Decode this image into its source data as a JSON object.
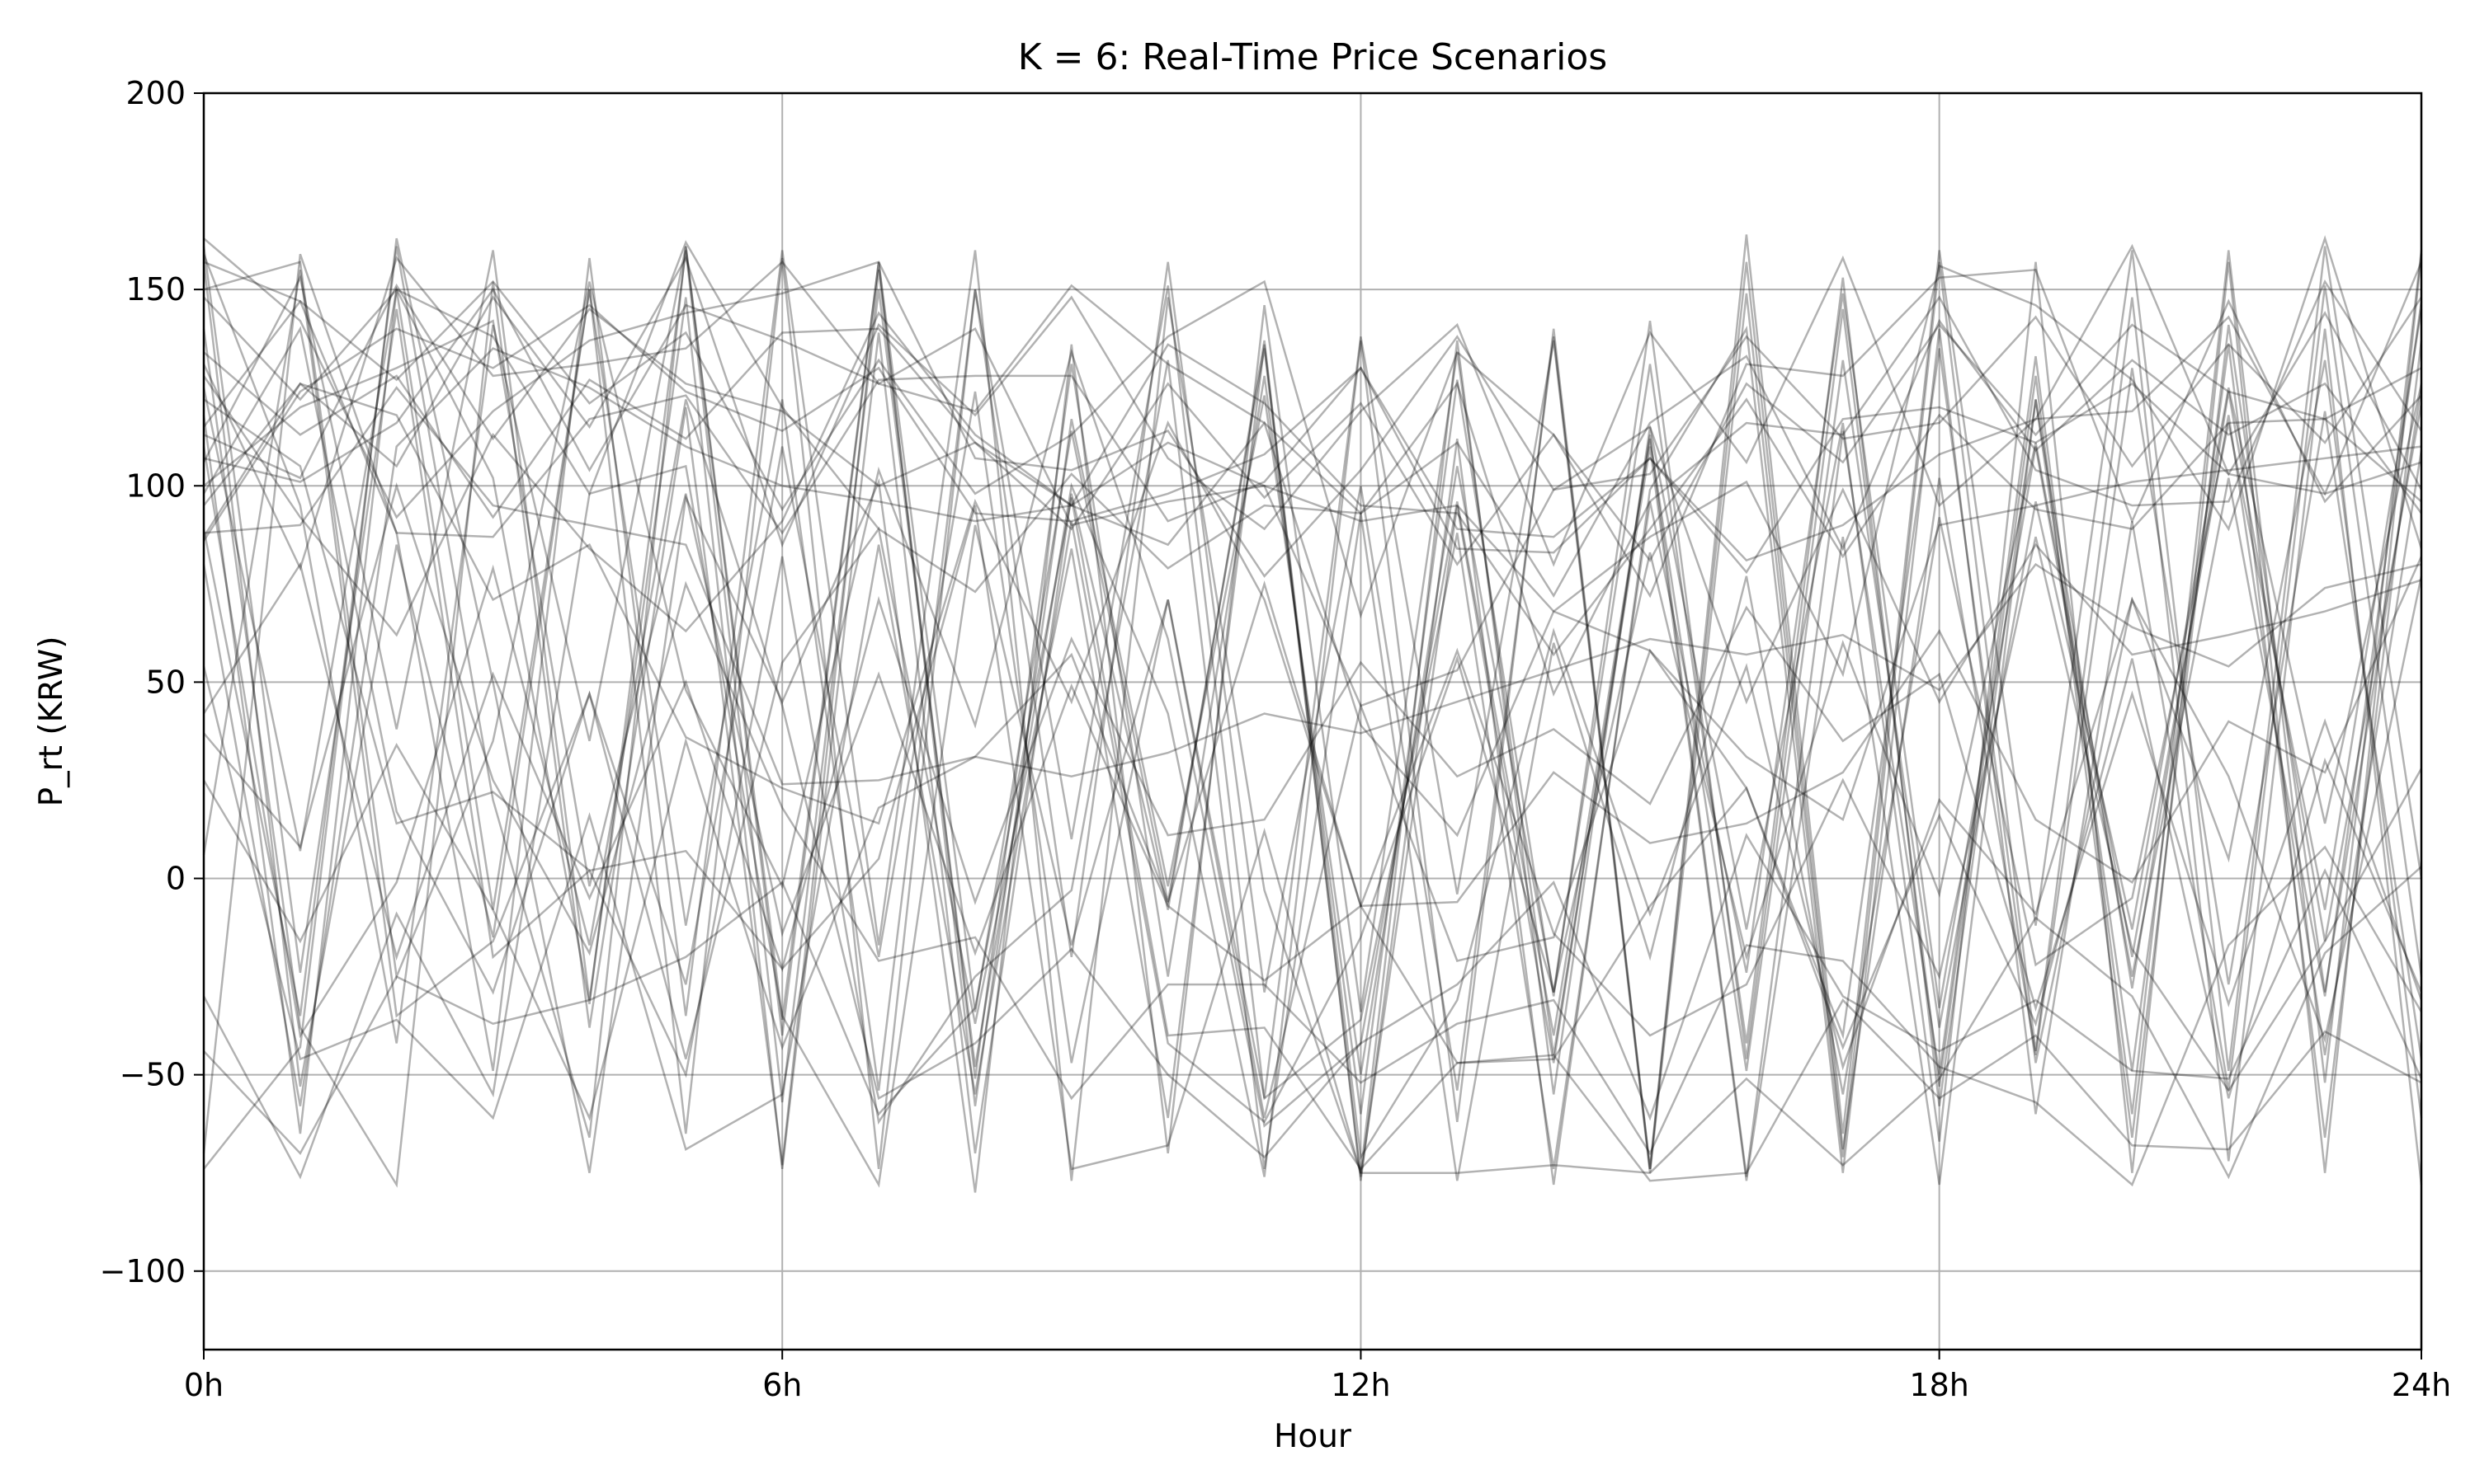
{
  "chart_data": {
    "type": "line",
    "title": "K = 6: Real-Time Price Scenarios",
    "xlabel": "Hour",
    "ylabel": "P_rt (KRW)",
    "xlim": [
      0,
      23
    ],
    "ylim": [
      -120,
      200
    ],
    "xticks": [
      0,
      6,
      12,
      18,
      23
    ],
    "xtick_labels": [
      "0h",
      "6h",
      "12h",
      "18h",
      "24h"
    ],
    "yticks": [
      -100,
      -50,
      0,
      50,
      100,
      150,
      200
    ],
    "ytick_labels": [
      "−100",
      "−50",
      "0",
      "50",
      "100",
      "150",
      "200"
    ],
    "grid": true,
    "legend": "none",
    "line_color": "#000000",
    "line_opacity": 0.3,
    "x": [
      0,
      1,
      2,
      3,
      4,
      5,
      6,
      7,
      8,
      9,
      10,
      11,
      12,
      13,
      14,
      15,
      16,
      17,
      18,
      19,
      20,
      21,
      22,
      23
    ],
    "series": [
      {
        "values": [
          -70,
          159,
          88,
          -49,
          158,
          -35,
          160,
          -17,
          160,
          -77,
          148,
          -3,
          -75,
          137,
          -55,
          115,
          -13,
          116,
          -67,
          157,
          -75,
          157,
          -75,
          159
        ]
      },
      {
        "values": [
          125,
          7,
          150,
          -8,
          150,
          -12,
          122,
          -54,
          150,
          10,
          151,
          -56,
          138,
          -4,
          137,
          -75,
          149,
          -71,
          157,
          -44,
          148,
          -72,
          140,
          -78
        ]
      },
      {
        "values": [
          89,
          -35,
          161,
          20,
          -66,
          161,
          -36,
          157,
          -34,
          114,
          -6,
          135,
          -76,
          95,
          -47,
          113,
          -76,
          114,
          -50,
          133,
          -60,
          160,
          -52,
          160
        ]
      },
      {
        "values": [
          157,
          -53,
          85,
          -15,
          150,
          -65,
          158,
          -74,
          150,
          -20,
          157,
          -29,
          100,
          -54,
          138,
          -74,
          164,
          -65,
          160,
          -12,
          160,
          -49,
          161,
          0
        ]
      },
      {
        "values": [
          -74,
          -43,
          163,
          50,
          -75,
          97,
          45,
          101,
          -80,
          136,
          -70,
          146,
          -34,
          134,
          -45,
          110,
          -77,
          87,
          -78,
          122,
          -49,
          136,
          -66,
          137
        ]
      },
      {
        "values": [
          106,
          153,
          38,
          160,
          -31,
          148,
          -74,
          139,
          -70,
          98,
          -8,
          137,
          -77,
          112,
          -78,
          99,
          140,
          -75,
          140,
          -60,
          91,
          -54,
          151,
          -25
        ]
      },
      {
        "values": [
          118,
          -65,
          150,
          102,
          -32,
          160,
          -57,
          150,
          -48,
          100,
          42,
          -76,
          137,
          -62,
          140,
          -74,
          157,
          -69,
          102,
          -45,
          130,
          -27,
          119,
          -46
        ]
      },
      {
        "values": [
          140,
          -38,
          -78,
          152,
          -38,
          120,
          -73,
          155,
          -51,
          131,
          -25,
          128,
          -60,
          127,
          -30,
          142,
          -46,
          145,
          -53,
          128,
          -66,
          141,
          -29,
          125
        ]
      },
      {
        "values": [
          159,
          95,
          -42,
          141,
          35,
          161,
          -40,
          157,
          -58,
          117,
          -2,
          123,
          -50,
          105,
          -29,
          131,
          -42,
          153,
          -58,
          122,
          -28,
          124,
          -16,
          121
        ]
      },
      {
        "values": [
          150,
          157,
          -25,
          35,
          152,
          48,
          -2,
          104,
          39,
          134,
          61,
          -63,
          -42,
          96,
          -40,
          112,
          -49,
          132,
          -38,
          96,
          -13,
          125,
          14,
          126
        ]
      },
      {
        "values": [
          -30,
          -76,
          -9,
          -55,
          98,
          105,
          -35,
          -78,
          90,
          -17,
          71,
          -56,
          -36,
          88,
          -74,
          96,
          -24,
          149,
          -33,
          110,
          -25,
          102,
          -30,
          147
        ]
      },
      {
        "values": [
          54,
          -46,
          -36,
          -61,
          16,
          -69,
          -55,
          85,
          -55,
          91,
          -42,
          -62,
          -15,
          56,
          -29,
          83,
          -20,
          60,
          -4,
          111,
          -20,
          118,
          -45,
          109
        ]
      },
      {
        "values": [
          161,
          -24,
          145,
          -20,
          2,
          -50,
          82,
          -62,
          -25,
          -3,
          132,
          -74,
          93,
          -77,
          60,
          -20,
          77,
          -55,
          92,
          -22,
          -5,
          116,
          -8,
          145
        ]
      },
      {
        "values": [
          98,
          140,
          17,
          -29,
          47,
          -46,
          55,
          89,
          -37,
          84,
          -61,
          136,
          -71,
          -31,
          63,
          -9,
          54,
          -48,
          20,
          -9,
          71,
          5,
          132,
          -61
        ]
      },
      {
        "values": [
          42,
          80,
          -20,
          52,
          -5,
          50,
          -23,
          71,
          -6,
          61,
          11,
          15,
          55,
          26,
          38,
          19,
          69,
          35,
          52,
          -33,
          47,
          -32,
          40,
          -31
        ]
      },
      {
        "values": [
          6,
          155,
          -35,
          -16,
          47,
          -27,
          110,
          -20,
          124,
          -47,
          71,
          -61,
          44,
          -21,
          -15,
          58,
          23,
          -40,
          135,
          -47,
          71,
          26,
          -41,
          77
        ]
      },
      {
        "values": [
          25,
          -16,
          34,
          -8,
          -61,
          35,
          -43,
          18,
          31,
          57,
          -6,
          75,
          -7,
          -47,
          -46,
          -7,
          23,
          -43,
          16,
          -37,
          56,
          -56,
          30,
          -29
        ]
      },
      {
        "values": [
          -44,
          -70,
          -25,
          -37,
          -31,
          -20,
          -1,
          -60,
          -33,
          97,
          -40,
          -38,
          -74,
          -47,
          -45,
          -77,
          -75,
          -31,
          -56,
          -40,
          -68,
          -69,
          -39,
          -52
        ]
      },
      {
        "values": [
          37,
          8,
          100,
          25,
          -19,
          75,
          18,
          -21,
          -15,
          -56,
          -27,
          -27,
          -52,
          -37,
          -31,
          -70,
          -17,
          -21,
          -48,
          -57,
          -78,
          -17,
          8,
          -34
        ]
      },
      {
        "values": [
          122,
          105,
          14,
          22,
          2,
          7,
          -23,
          5,
          95,
          -74,
          -68,
          12,
          -75,
          -75,
          -73,
          -75,
          -51,
          -73,
          -51,
          -10,
          -30,
          -76,
          -19,
          3
        ]
      },
      {
        "values": [
          110,
          -40,
          -1,
          79,
          -17,
          122,
          44,
          -56,
          -42,
          -18,
          -50,
          -71,
          -42,
          -27,
          -1,
          -61,
          11,
          -30,
          -44,
          -31,
          -49,
          -51,
          2,
          -51
        ]
      },
      {
        "values": [
          100,
          120,
          130,
          142,
          -2,
          98,
          -14,
          52,
          -19,
          49,
          -7,
          -26,
          -7,
          58,
          -14,
          -40,
          -27,
          25,
          -25,
          87,
          -18,
          -54,
          -16,
          28
        ]
      },
      {
        "values": [
          88,
          90,
          125,
          95,
          90,
          85,
          24,
          25,
          31,
          26,
          32,
          42,
          37,
          45,
          53,
          61,
          57,
          62,
          48,
          80,
          64,
          54,
          74,
          80
        ]
      },
      {
        "values": [
          95,
          126,
          118,
          71,
          85,
          36,
          23,
          14,
          96,
          45,
          116,
          71,
          -7,
          -6,
          27,
          9,
          14,
          27,
          63,
          15,
          -1,
          40,
          27,
          82
        ]
      },
      {
        "values": [
          80,
          -58,
          110,
          135,
          125,
          110,
          100,
          96,
          91,
          95,
          85,
          116,
          39,
          11,
          68,
          58,
          31,
          15,
          90,
          95,
          101,
          104,
          107,
          110
        ]
      },
      {
        "values": [
          128,
          92,
          62,
          113,
          84,
          63,
          91,
          144,
          113,
          95,
          111,
          100,
          44,
          53,
          99,
          115,
          45,
          99,
          45,
          85,
          57,
          62,
          68,
          76
        ]
      },
      {
        "values": [
          157,
          147,
          88,
          87,
          117,
          123,
          88,
          127,
          128,
          128,
          91,
          101,
          130,
          89,
          87,
          107,
          78,
          117,
          120,
          111,
          126,
          103,
          98,
          106
        ]
      },
      {
        "values": [
          134,
          113,
          128,
          92,
          127,
          112,
          139,
          140,
          111,
          95,
          136,
          121,
          95,
          93,
          57,
          89,
          122,
          82,
          118,
          94,
          89,
          116,
          117,
          96
        ]
      },
      {
        "values": [
          107,
          101,
          116,
          150,
          104,
          146,
          137,
          126,
          119,
          151,
          131,
          116,
          93,
          111,
          72,
          116,
          133,
          84,
          142,
          109,
          132,
          113,
          126,
          93
        ]
      },
      {
        "values": [
          86,
          124,
          140,
          130,
          146,
          124,
          114,
          130,
          93,
          91,
          98,
          108,
          130,
          84,
          83,
          107,
          81,
          90,
          108,
          117,
          119,
          143,
          98,
          157
        ]
      },
      {
        "values": [
          113,
          102,
          151,
          112,
          145,
          126,
          119,
          100,
          111,
          89,
          126,
          97,
          121,
          80,
          113,
          81,
          126,
          106,
          141,
          113,
          141,
          124,
          117,
          130
        ]
      },
      {
        "values": [
          148,
          122,
          150,
          138,
          98,
          162,
          120,
          89,
          73,
          103,
          79,
          95,
          93,
          126,
          47,
          96,
          116,
          113,
          148,
          104,
          95,
          96,
          152,
          114
        ]
      },
      {
        "values": [
          131,
          79,
          158,
          128,
          131,
          135,
          157,
          126,
          140,
          90,
          96,
          100,
          91,
          95,
          68,
          87,
          101,
          52,
          156,
          146,
          127,
          89,
          163,
          84
        ]
      },
      {
        "values": [
          163,
          142,
          92,
          119,
          137,
          144,
          149,
          157,
          107,
          104,
          114,
          77,
          104,
          138,
          99,
          103,
          138,
          112,
          116,
          143,
          105,
          136,
          111,
          148
        ]
      },
      {
        "values": [
          115,
          147,
          127,
          152,
          121,
          139,
          94,
          132,
          98,
          113,
          138,
          152,
          67,
          134,
          113,
          72,
          131,
          128,
          153,
          155,
          91,
          147,
          96,
          123
        ]
      },
      {
        "values": [
          87,
          126,
          105,
          148,
          115,
          158,
          85,
          141,
          118,
          148,
          107,
          89,
          119,
          141,
          80,
          139,
          106,
          158,
          95,
          117,
          161,
          103,
          144,
          99
        ]
      }
    ]
  }
}
